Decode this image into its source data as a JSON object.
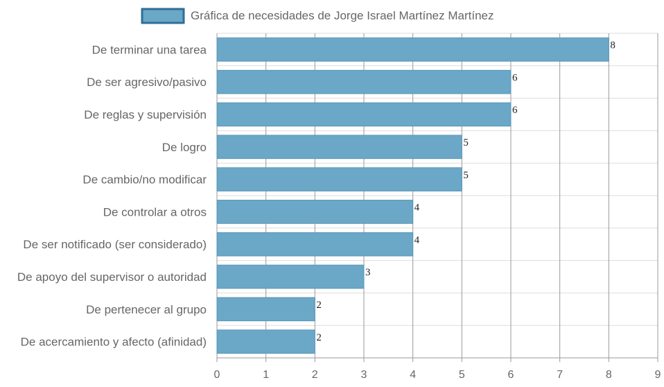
{
  "chart_data": {
    "type": "bar",
    "orientation": "horizontal",
    "categories": [
      "De terminar una tarea",
      "De ser agresivo/pasivo",
      "De reglas y supervisión",
      "De logro",
      "De cambio/no modificar",
      "De controlar a otros",
      "De ser notificado (ser considerado)",
      "De apoyo del supervisor o autoridad",
      "De pertenecer al grupo",
      "De acercamiento y afecto (afinidad)"
    ],
    "series": [
      {
        "name": "Gráfica de necesidades de Jorge Israel Martínez Martínez",
        "values": [
          8,
          6,
          6,
          5,
          5,
          4,
          4,
          3,
          2,
          2
        ]
      }
    ],
    "xlim": [
      0,
      9
    ],
    "xticks": [
      "0",
      "1",
      "2",
      "3",
      "4",
      "5",
      "6",
      "7",
      "8",
      "9"
    ],
    "grid": true,
    "legend_position": "top",
    "colors": {
      "bar_fill": "#6ba7c6",
      "bar_stroke": "#5a96b6",
      "legend_fill": "#6ba7c6",
      "legend_border": "#2f6f96",
      "grid_major": "#999999",
      "grid_minor": "#dddddd"
    }
  }
}
